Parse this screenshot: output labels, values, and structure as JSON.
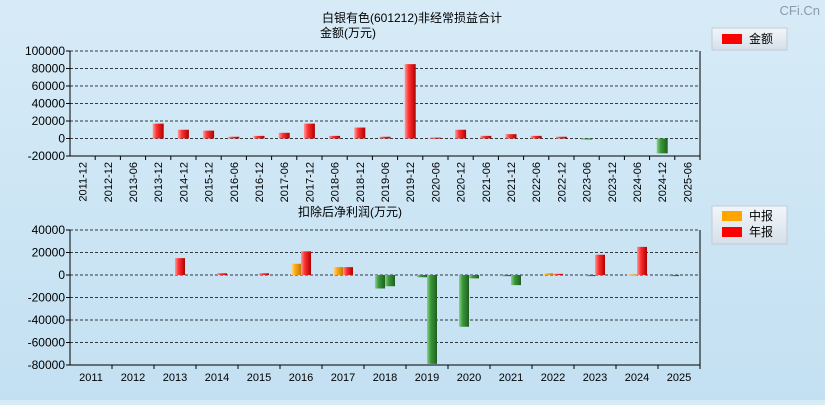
{
  "watermark": "CFi.Cn",
  "chart_data": [
    {
      "type": "bar",
      "title": "白银有色(601212)非经常损益合计",
      "ylabel": "金额(万元)",
      "legend": [
        {
          "label": "金额",
          "color": "#ff0000"
        }
      ],
      "legend_position": "top-right",
      "ylim": [
        -20000,
        100000
      ],
      "yticks": [
        "100000",
        "80000",
        "60000",
        "40000",
        "20000",
        "0",
        "-20000"
      ],
      "grid": true,
      "categories": [
        "2011-12",
        "2012-12",
        "2013-06",
        "2013-12",
        "2014-12",
        "2015-12",
        "2016-06",
        "2016-12",
        "2017-06",
        "2017-12",
        "2018-06",
        "2018-12",
        "2019-06",
        "2019-12",
        "2020-06",
        "2020-12",
        "2021-06",
        "2021-12",
        "2022-06",
        "2022-12",
        "2023-06",
        "2023-12",
        "2024-06",
        "2024-12",
        "2025-06"
      ],
      "series": [
        {
          "name": "金额",
          "values": [
            0,
            0,
            0,
            17000,
            10000,
            9000,
            2000,
            3000,
            6500,
            17000,
            3000,
            12500,
            2000,
            85000,
            1000,
            10000,
            3000,
            5000,
            3000,
            2000,
            -1000,
            0,
            0,
            -17000,
            0
          ]
        }
      ]
    },
    {
      "type": "bar",
      "title": "扣除后净利润(万元)",
      "legend": [
        {
          "label": "中报",
          "color": "#ffa500"
        },
        {
          "label": "年报",
          "color": "#ff0000"
        }
      ],
      "legend_position": "top-right",
      "ylim": [
        -80000,
        40000
      ],
      "yticks": [
        "40000",
        "20000",
        "0",
        "-20000",
        "-40000",
        "-60000",
        "-80000"
      ],
      "grid": true,
      "categories": [
        "2011",
        "2012",
        "2013",
        "2014",
        "2015",
        "2016",
        "2017",
        "2018",
        "2019",
        "2020",
        "2021",
        "2022",
        "2023",
        "2024",
        "2025"
      ],
      "series": [
        {
          "name": "中报",
          "values": [
            0,
            0,
            0,
            0,
            0,
            10000,
            7000,
            -12000,
            -2000,
            -46000,
            -1000,
            1500,
            -1000,
            500,
            -1000
          ]
        },
        {
          "name": "年报",
          "values": [
            0,
            0,
            15000,
            1500,
            1500,
            21000,
            7000,
            -10000,
            -79000,
            -3000,
            -9000,
            1000,
            18000,
            25000,
            0
          ]
        }
      ]
    }
  ]
}
